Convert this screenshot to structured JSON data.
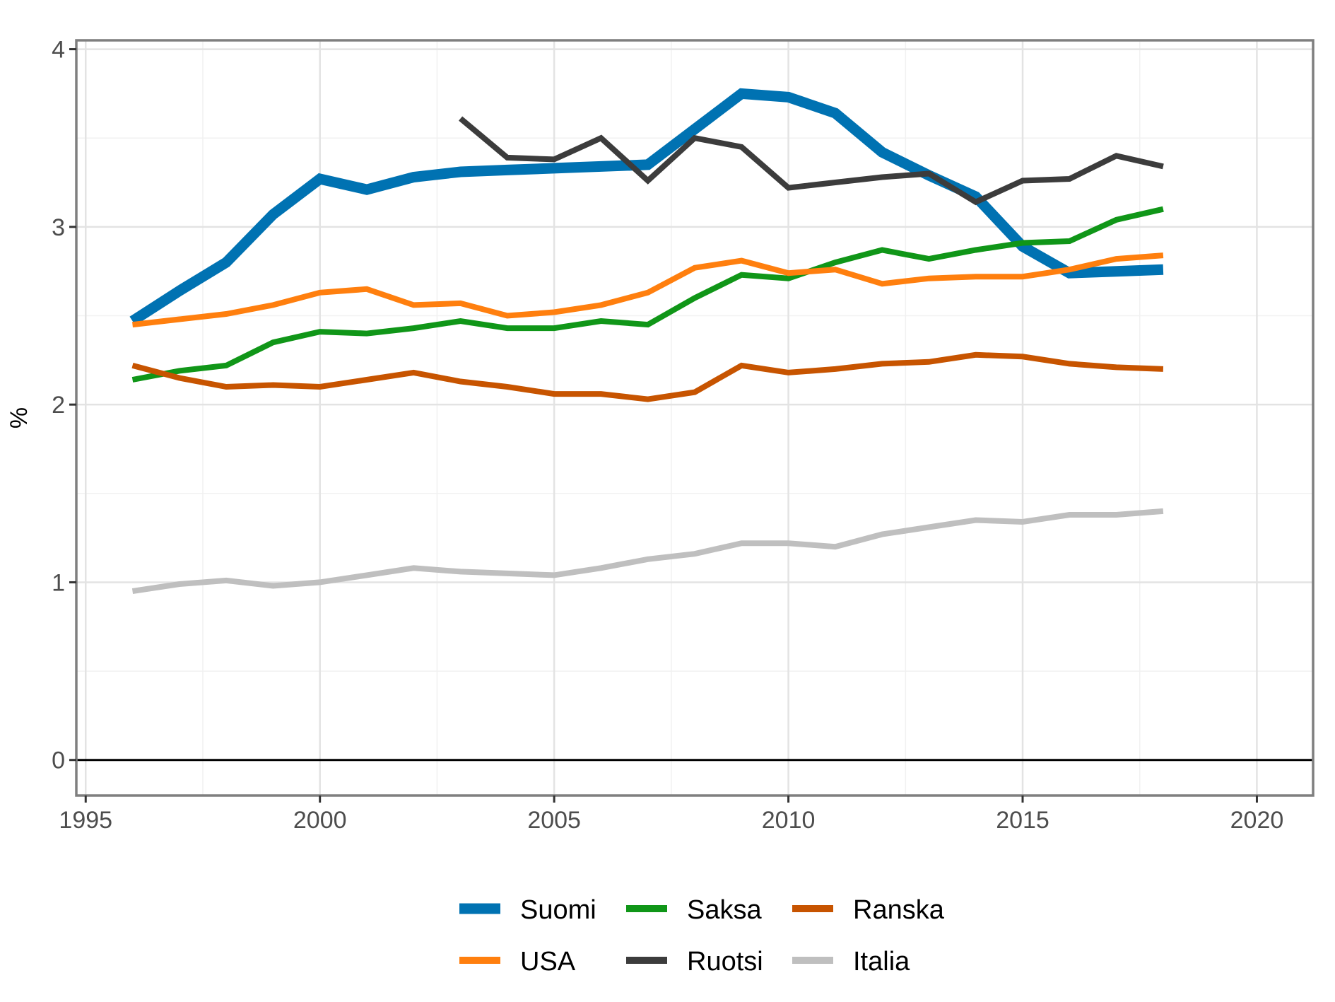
{
  "chart_data": {
    "type": "line",
    "title": "",
    "xlabel": "",
    "ylabel": "%",
    "xlim": [
      1994.8,
      2021.2
    ],
    "ylim": [
      -0.2,
      4.05
    ],
    "x_ticks": [
      1995,
      2000,
      2005,
      2010,
      2015,
      2020
    ],
    "x_tick_labels": [
      "1995",
      "2000",
      "2005",
      "2010",
      "2015",
      "2020"
    ],
    "y_ticks": [
      0,
      1,
      2,
      3,
      4
    ],
    "y_tick_labels": [
      "0",
      "1",
      "2",
      "3",
      "4"
    ],
    "grid": true,
    "zero_line": true,
    "legend_position": "bottom",
    "series": [
      {
        "name": "Suomi",
        "color": "#0072B2",
        "emphasis": true,
        "points": [
          [
            1996,
            2.47
          ],
          [
            1997,
            2.64
          ],
          [
            1998,
            2.8
          ],
          [
            1999,
            3.07
          ],
          [
            2000,
            3.27
          ],
          [
            2001,
            3.21
          ],
          [
            2002,
            3.28
          ],
          [
            2003,
            3.31
          ],
          [
            2004,
            3.32
          ],
          [
            2005,
            3.33
          ],
          [
            2006,
            3.34
          ],
          [
            2007,
            3.35
          ],
          [
            2008,
            3.55
          ],
          [
            2009,
            3.75
          ],
          [
            2010,
            3.73
          ],
          [
            2011,
            3.64
          ],
          [
            2012,
            3.42
          ],
          [
            2013,
            3.29
          ],
          [
            2014,
            3.17
          ],
          [
            2015,
            2.89
          ],
          [
            2016,
            2.74
          ],
          [
            2017,
            2.75
          ],
          [
            2018,
            2.76
          ]
        ]
      },
      {
        "name": "Saksa",
        "color": "#109618",
        "points": [
          [
            1996,
            2.14
          ],
          [
            1997,
            2.19
          ],
          [
            1998,
            2.22
          ],
          [
            1999,
            2.35
          ],
          [
            2000,
            2.41
          ],
          [
            2001,
            2.4
          ],
          [
            2002,
            2.43
          ],
          [
            2003,
            2.47
          ],
          [
            2004,
            2.43
          ],
          [
            2005,
            2.43
          ],
          [
            2006,
            2.47
          ],
          [
            2007,
            2.45
          ],
          [
            2008,
            2.6
          ],
          [
            2009,
            2.73
          ],
          [
            2010,
            2.71
          ],
          [
            2011,
            2.8
          ],
          [
            2012,
            2.87
          ],
          [
            2013,
            2.82
          ],
          [
            2014,
            2.87
          ],
          [
            2015,
            2.91
          ],
          [
            2016,
            2.92
          ],
          [
            2017,
            3.04
          ],
          [
            2018,
            3.1
          ]
        ]
      },
      {
        "name": "Ranska",
        "color": "#C75400",
        "points": [
          [
            1996,
            2.22
          ],
          [
            1997,
            2.15
          ],
          [
            1998,
            2.1
          ],
          [
            1999,
            2.11
          ],
          [
            2000,
            2.1
          ],
          [
            2001,
            2.14
          ],
          [
            2002,
            2.18
          ],
          [
            2003,
            2.13
          ],
          [
            2004,
            2.1
          ],
          [
            2005,
            2.06
          ],
          [
            2006,
            2.06
          ],
          [
            2007,
            2.03
          ],
          [
            2008,
            2.07
          ],
          [
            2009,
            2.22
          ],
          [
            2010,
            2.18
          ],
          [
            2011,
            2.2
          ],
          [
            2012,
            2.23
          ],
          [
            2013,
            2.24
          ],
          [
            2014,
            2.28
          ],
          [
            2015,
            2.27
          ],
          [
            2016,
            2.23
          ],
          [
            2017,
            2.21
          ],
          [
            2018,
            2.2
          ]
        ]
      },
      {
        "name": "USA",
        "color": "#FF7F0E",
        "points": [
          [
            1996,
            2.45
          ],
          [
            1997,
            2.48
          ],
          [
            1998,
            2.51
          ],
          [
            1999,
            2.56
          ],
          [
            2000,
            2.63
          ],
          [
            2001,
            2.65
          ],
          [
            2002,
            2.56
          ],
          [
            2003,
            2.57
          ],
          [
            2004,
            2.5
          ],
          [
            2005,
            2.52
          ],
          [
            2006,
            2.56
          ],
          [
            2007,
            2.63
          ],
          [
            2008,
            2.77
          ],
          [
            2009,
            2.81
          ],
          [
            2010,
            2.74
          ],
          [
            2011,
            2.76
          ],
          [
            2012,
            2.68
          ],
          [
            2013,
            2.71
          ],
          [
            2014,
            2.72
          ],
          [
            2015,
            2.72
          ],
          [
            2016,
            2.76
          ],
          [
            2017,
            2.82
          ],
          [
            2018,
            2.84
          ]
        ]
      },
      {
        "name": "Ruotsi",
        "color": "#3C3C3C",
        "points": [
          [
            2003,
            3.61
          ],
          [
            2004,
            3.39
          ],
          [
            2005,
            3.38
          ],
          [
            2006,
            3.5
          ],
          [
            2007,
            3.26
          ],
          [
            2008,
            3.5
          ],
          [
            2009,
            3.45
          ],
          [
            2010,
            3.22
          ],
          [
            2011,
            3.25
          ],
          [
            2012,
            3.28
          ],
          [
            2013,
            3.3
          ],
          [
            2014,
            3.14
          ],
          [
            2015,
            3.26
          ],
          [
            2016,
            3.27
          ],
          [
            2017,
            3.4
          ],
          [
            2018,
            3.34
          ]
        ]
      },
      {
        "name": "Italia",
        "color": "#BFBFBF",
        "points": [
          [
            1996,
            0.95
          ],
          [
            1997,
            0.99
          ],
          [
            1998,
            1.01
          ],
          [
            1999,
            0.98
          ],
          [
            2000,
            1.0
          ],
          [
            2001,
            1.04
          ],
          [
            2002,
            1.08
          ],
          [
            2003,
            1.06
          ],
          [
            2004,
            1.05
          ],
          [
            2005,
            1.04
          ],
          [
            2006,
            1.08
          ],
          [
            2007,
            1.13
          ],
          [
            2008,
            1.16
          ],
          [
            2009,
            1.22
          ],
          [
            2010,
            1.22
          ],
          [
            2011,
            1.2
          ],
          [
            2012,
            1.27
          ],
          [
            2013,
            1.31
          ],
          [
            2014,
            1.35
          ],
          [
            2015,
            1.34
          ],
          [
            2016,
            1.38
          ],
          [
            2017,
            1.38
          ],
          [
            2018,
            1.4
          ]
        ]
      }
    ],
    "legend": {
      "rows": [
        [
          "Suomi",
          "Saksa",
          "Ranska"
        ],
        [
          "USA",
          "Ruotsi",
          "Italia"
        ]
      ]
    }
  }
}
